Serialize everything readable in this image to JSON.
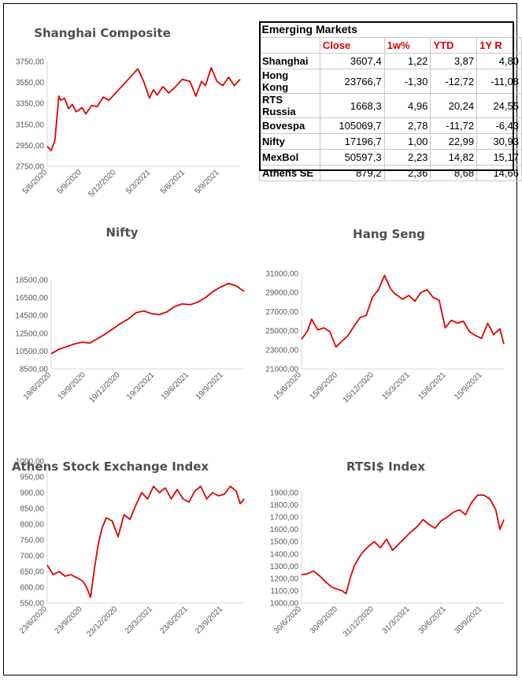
{
  "table": {
    "title": "Emerging Markets",
    "headers": [
      "",
      "Close",
      "1w%",
      "YTD",
      "1Y R"
    ],
    "rows": [
      [
        "Shanghai",
        "3607,4",
        "1,22",
        "3,87",
        "4,80"
      ],
      [
        "Hong Kong",
        "23766,7",
        "-1,30",
        "-12,72",
        "-11,08"
      ],
      [
        "RTS Russia",
        "1668,3",
        "4,96",
        "20,24",
        "24,55"
      ],
      [
        "Bovespa",
        "105069,7",
        "2,78",
        "-11,72",
        "-6,43"
      ],
      [
        "Nifty",
        "17196,7",
        "1,00",
        "22,99",
        "30,93"
      ],
      [
        "MexBol",
        "50597,3",
        "2,23",
        "14,82",
        "15,17"
      ],
      [
        "Athens SE",
        "879,2",
        "2,36",
        "8,68",
        "14,66"
      ]
    ]
  },
  "chart_data": [
    {
      "id": "shanghai",
      "type": "line",
      "title": "Shanghai Composite",
      "ylim": [
        2750,
        3750
      ],
      "yticks": [
        "2750,00",
        "2950,00",
        "3150,00",
        "3350,00",
        "3550,00",
        "3750,00"
      ],
      "xticks": [
        "5/6/2020",
        "5/9/2020",
        "5/12/2020",
        "5/3/2021",
        "5/6/2021",
        "5/9/2021"
      ],
      "xlim": [
        0,
        1
      ],
      "color": "#e00000",
      "x": [
        0.0,
        0.02,
        0.04,
        0.06,
        0.07,
        0.09,
        0.11,
        0.13,
        0.15,
        0.18,
        0.2,
        0.23,
        0.26,
        0.29,
        0.32,
        0.35,
        0.38,
        0.41,
        0.44,
        0.47,
        0.5,
        0.53,
        0.55,
        0.57,
        0.6,
        0.63,
        0.66,
        0.7,
        0.74,
        0.77,
        0.8,
        0.82,
        0.85,
        0.88,
        0.91,
        0.94,
        0.97,
        1.0
      ],
      "values": [
        2940,
        2900,
        3000,
        3420,
        3380,
        3400,
        3300,
        3340,
        3270,
        3310,
        3250,
        3330,
        3320,
        3410,
        3380,
        3440,
        3500,
        3560,
        3620,
        3680,
        3560,
        3400,
        3480,
        3430,
        3510,
        3450,
        3500,
        3580,
        3560,
        3420,
        3560,
        3520,
        3690,
        3560,
        3520,
        3600,
        3520,
        3580
      ]
    },
    {
      "id": "nifty",
      "type": "line",
      "title": "Nifty",
      "ylim": [
        8500,
        18500
      ],
      "yticks": [
        "8500,00",
        "10500,00",
        "12500,00",
        "14500,00",
        "16500,00",
        "18500,00"
      ],
      "xticks": [
        "19/6/2020",
        "19/9/2020",
        "19/12/2020",
        "19/3/2021",
        "19/6/2021",
        "19/9/2021"
      ],
      "xlim": [
        0,
        1
      ],
      "color": "#e00000",
      "x": [
        0.0,
        0.04,
        0.08,
        0.12,
        0.16,
        0.2,
        0.24,
        0.28,
        0.32,
        0.36,
        0.4,
        0.44,
        0.48,
        0.52,
        0.56,
        0.6,
        0.64,
        0.68,
        0.72,
        0.76,
        0.8,
        0.84,
        0.88,
        0.92,
        0.96,
        1.0
      ],
      "values": [
        10200,
        10700,
        11000,
        11300,
        11500,
        11400,
        11900,
        12400,
        13000,
        13600,
        14100,
        14800,
        15000,
        14700,
        14600,
        14900,
        15500,
        15800,
        15700,
        16000,
        16500,
        17200,
        17700,
        18100,
        17800,
        17200
      ]
    },
    {
      "id": "hangseng",
      "type": "line",
      "title": "Hang Seng",
      "ylim": [
        21000,
        31000
      ],
      "yticks": [
        "21000,00",
        "23000,00",
        "25000,00",
        "27000,00",
        "29000,00",
        "31000,00"
      ],
      "xticks": [
        "15/6/2020",
        "15/9/2020",
        "15/12/2020",
        "15/3/2021",
        "15/6/2021",
        "15/9/2021"
      ],
      "xlim": [
        0,
        1
      ],
      "color": "#e00000",
      "x": [
        0.0,
        0.03,
        0.05,
        0.08,
        0.11,
        0.14,
        0.17,
        0.2,
        0.23,
        0.26,
        0.29,
        0.32,
        0.35,
        0.38,
        0.41,
        0.44,
        0.46,
        0.48,
        0.5,
        0.53,
        0.56,
        0.59,
        0.62,
        0.65,
        0.68,
        0.71,
        0.74,
        0.77,
        0.8,
        0.83,
        0.86,
        0.89,
        0.92,
        0.95,
        0.98,
        1.0
      ],
      "values": [
        24100,
        25000,
        26200,
        25100,
        25300,
        24900,
        23300,
        23900,
        24500,
        25500,
        26400,
        26600,
        28500,
        29300,
        30800,
        29400,
        28900,
        28600,
        28300,
        28700,
        28100,
        29000,
        29300,
        28500,
        28200,
        25300,
        26100,
        25800,
        26000,
        24900,
        24500,
        24200,
        25800,
        24600,
        25200,
        23600
      ]
    },
    {
      "id": "athens",
      "type": "line",
      "title": "Athens Stock Exchange Index",
      "ylim": [
        550,
        1000
      ],
      "yticks": [
        "550,00",
        "600,00",
        "650,00",
        "700,00",
        "750,00",
        "800,00",
        "850,00",
        "900,00",
        "950,00",
        "1000,00"
      ],
      "xticks": [
        "23/6/2020",
        "23/9/2020",
        "23/12/2020",
        "23/3/2021",
        "23/6/2021",
        "23/9/2021"
      ],
      "xlim": [
        0,
        1
      ],
      "color": "#e00000",
      "x": [
        0.0,
        0.03,
        0.06,
        0.09,
        0.12,
        0.15,
        0.18,
        0.2,
        0.22,
        0.24,
        0.26,
        0.28,
        0.3,
        0.33,
        0.36,
        0.39,
        0.42,
        0.45,
        0.48,
        0.51,
        0.54,
        0.57,
        0.6,
        0.63,
        0.66,
        0.69,
        0.72,
        0.75,
        0.78,
        0.81,
        0.84,
        0.87,
        0.9,
        0.93,
        0.96,
        0.98,
        1.0
      ],
      "values": [
        670,
        640,
        650,
        635,
        640,
        630,
        620,
        600,
        568,
        660,
        740,
        790,
        820,
        810,
        760,
        830,
        815,
        860,
        900,
        880,
        920,
        900,
        915,
        880,
        910,
        880,
        870,
        905,
        920,
        880,
        900,
        890,
        895,
        920,
        905,
        865,
        880
      ]
    },
    {
      "id": "rtsi",
      "type": "line",
      "title": "RTSI$ Index",
      "ylim": [
        1000,
        1900
      ],
      "yticks": [
        "1000,00",
        "1100,00",
        "1200,00",
        "1300,00",
        "1400,00",
        "1500,00",
        "1600,00",
        "1700,00",
        "1800,00",
        "1900,00"
      ],
      "xticks": [
        "30/6/2020",
        "30/9/2020",
        "31/12/2020",
        "31/3/2021",
        "30/6/2021",
        "30/9/2021"
      ],
      "xlim": [
        0,
        1
      ],
      "color": "#e00000",
      "x": [
        0.0,
        0.03,
        0.06,
        0.09,
        0.12,
        0.15,
        0.18,
        0.2,
        0.22,
        0.24,
        0.26,
        0.28,
        0.3,
        0.33,
        0.36,
        0.39,
        0.42,
        0.45,
        0.48,
        0.51,
        0.54,
        0.57,
        0.6,
        0.63,
        0.66,
        0.69,
        0.72,
        0.75,
        0.78,
        0.81,
        0.84,
        0.87,
        0.9,
        0.93,
        0.96,
        0.98,
        1.0
      ],
      "values": [
        1230,
        1240,
        1260,
        1220,
        1170,
        1130,
        1110,
        1100,
        1075,
        1200,
        1300,
        1360,
        1410,
        1460,
        1500,
        1450,
        1520,
        1430,
        1480,
        1530,
        1580,
        1620,
        1680,
        1640,
        1610,
        1670,
        1700,
        1740,
        1760,
        1720,
        1820,
        1880,
        1880,
        1850,
        1760,
        1600,
        1680
      ]
    }
  ]
}
